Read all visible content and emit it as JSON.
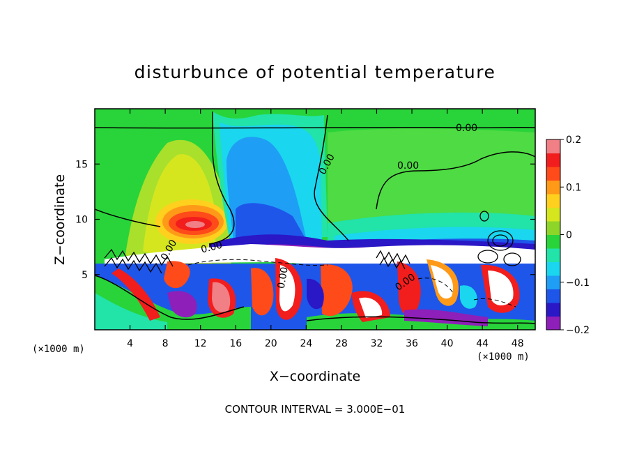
{
  "chart_data": {
    "type": "heatmap",
    "title": "disturbunce of potential temperature",
    "xlabel": "X−coordinate",
    "ylabel": "Z−coordinate",
    "x_unit_label": "(×1000 m)",
    "y_unit_label": "(×1000 m)",
    "xlim": [
      0,
      50
    ],
    "ylim": [
      0,
      20
    ],
    "x_ticks": [
      "4",
      "8",
      "12",
      "16",
      "20",
      "24",
      "28",
      "32",
      "36",
      "40",
      "44",
      "48"
    ],
    "y_ticks": [
      "5",
      "10",
      "15"
    ],
    "colorbar": {
      "range": [
        -0.2,
        0.2
      ],
      "tick_labels": [
        "0.2",
        "0.1",
        "0",
        "−0.1",
        "−0.2"
      ],
      "colors": [
        "#8e1fb8",
        "#2a17c6",
        "#1e56ea",
        "#1f9ef5",
        "#1ad6ef",
        "#22e3a8",
        "#28d43a",
        "#8ed52a",
        "#d6e61e",
        "#ffd01e",
        "#ff9a18",
        "#ff4a1a",
        "#f21d1d",
        "#f07f86"
      ]
    },
    "contour_labels": [
      "0.00",
      "0.00",
      "0.00",
      "0.00",
      "0.00",
      "0.00",
      "0.00"
    ],
    "annotation": "CONTOUR INTERVAL = 3.000E−01",
    "grid": false,
    "legend": "colorbar-right"
  }
}
